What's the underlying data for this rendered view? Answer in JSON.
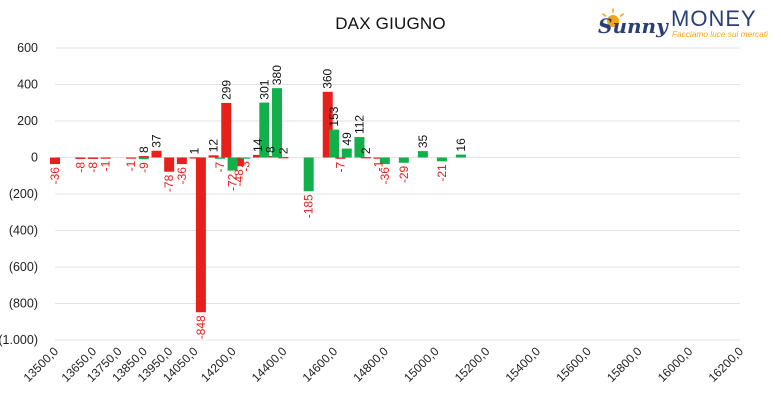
{
  "brand": {
    "name": "MONEY",
    "script": "Sunny",
    "tagline": "Facciamo luce sui mercati"
  },
  "colors": {
    "negative": "#e8201c",
    "positive": "#12b04c",
    "brand_orange": "#f5a51c",
    "brand_navy": "#2b3f77"
  },
  "chart_data": {
    "type": "bar",
    "title": "DAX GIUGNO",
    "xlabel": "",
    "ylabel": "",
    "ylim": [
      -1000,
      600
    ],
    "yticks": [
      600,
      400,
      200,
      0,
      -200,
      -400,
      -600,
      -800,
      -1000
    ],
    "ytick_labels": [
      "600",
      "400",
      "200",
      "0",
      "(200)",
      "(400)",
      "(600)",
      "(800)",
      "(1.000)"
    ],
    "xlim": [
      13500,
      16200
    ],
    "xticks": [
      13500,
      13650,
      13750,
      13850,
      13950,
      14050,
      14200,
      14400,
      14600,
      14800,
      15000,
      15200,
      15400,
      15600,
      15800,
      16000,
      16200
    ],
    "xtick_labels": [
      "13500,0",
      "13650,0",
      "13750,0",
      "13850,0",
      "13950,0",
      "14050,0",
      "14200,0",
      "14400,0",
      "14600,0",
      "14800,0",
      "15000,0",
      "15200,0",
      "15400,0",
      "15600,0",
      "15800,0",
      "16000,0",
      "16200,0"
    ],
    "grid": true,
    "legend": "none",
    "series": [
      {
        "color": "#e8201c",
        "points": [
          {
            "x": 13500,
            "y": -36,
            "label": "-36"
          },
          {
            "x": 13600,
            "y": -8,
            "label": "-8"
          },
          {
            "x": 13650,
            "y": -8,
            "label": "-8"
          },
          {
            "x": 13700,
            "y": -1,
            "label": "-1"
          },
          {
            "x": 13800,
            "y": -1,
            "label": "-1"
          },
          {
            "x": 13850,
            "y": 8,
            "label": "8"
          },
          {
            "x": 13900,
            "y": 37,
            "label": "37"
          },
          {
            "x": 13950,
            "y": -78,
            "label": "-78"
          },
          {
            "x": 14000,
            "y": -36,
            "label": "-36"
          },
          {
            "x": 14050,
            "y": 1,
            "label": "1"
          },
          {
            "x": 14075,
            "y": -848,
            "label": "-848"
          },
          {
            "x": 14125,
            "y": 12,
            "label": "12"
          },
          {
            "x": 14175,
            "y": 299,
            "label": "299"
          },
          {
            "x": 14225,
            "y": -48,
            "label": "-48"
          },
          {
            "x": 14300,
            "y": 14,
            "label": "14"
          },
          {
            "x": 14350,
            "y": 8,
            "label": "8"
          },
          {
            "x": 14400,
            "y": 2,
            "label": "2"
          },
          {
            "x": 14575,
            "y": 360,
            "label": "360"
          },
          {
            "x": 14625,
            "y": -7,
            "label": "-7"
          },
          {
            "x": 14725,
            "y": 2,
            "label": "2"
          },
          {
            "x": 14775,
            "y": -1,
            "label": "-1"
          }
        ]
      },
      {
        "color": "#12b04c",
        "points": [
          {
            "x": 13850,
            "y": -9,
            "label": "-9"
          },
          {
            "x": 14150,
            "y": -7,
            "label": "-7"
          },
          {
            "x": 14200,
            "y": -72,
            "label": "-72"
          },
          {
            "x": 14250,
            "y": -3,
            "label": "-3"
          },
          {
            "x": 14325,
            "y": 301,
            "label": "301"
          },
          {
            "x": 14375,
            "y": 380,
            "label": "380"
          },
          {
            "x": 14500,
            "y": -185,
            "label": "-185"
          },
          {
            "x": 14600,
            "y": 153,
            "label": "153"
          },
          {
            "x": 14650,
            "y": 49,
            "label": "49"
          },
          {
            "x": 14700,
            "y": 112,
            "label": "112"
          },
          {
            "x": 14800,
            "y": -36,
            "label": "-36"
          },
          {
            "x": 14875,
            "y": -29,
            "label": "-29"
          },
          {
            "x": 14950,
            "y": 35,
            "label": "35"
          },
          {
            "x": 15025,
            "y": -21,
            "label": "-21"
          },
          {
            "x": 15100,
            "y": 16,
            "label": "16"
          }
        ]
      }
    ]
  }
}
